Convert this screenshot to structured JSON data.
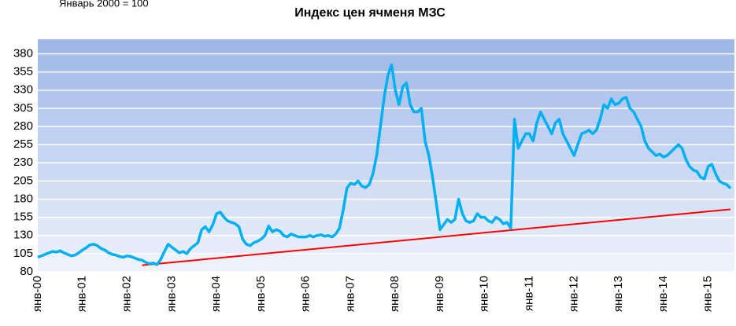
{
  "chart_data": {
    "type": "line",
    "title": "Индекс цен ячменя МЗС",
    "subtitle": "Январь 2000 = 100",
    "categories": [
      "янв-00",
      null,
      null,
      null,
      null,
      null,
      null,
      null,
      null,
      null,
      null,
      null,
      "янв-01",
      null,
      null,
      null,
      null,
      null,
      null,
      null,
      null,
      null,
      null,
      null,
      "янв-02",
      null,
      null,
      null,
      null,
      null,
      null,
      null,
      null,
      null,
      null,
      null,
      "янв-03",
      null,
      null,
      null,
      null,
      null,
      null,
      null,
      null,
      null,
      null,
      null,
      "янв-04",
      null,
      null,
      null,
      null,
      null,
      null,
      null,
      null,
      null,
      null,
      null,
      "янв-05",
      null,
      null,
      null,
      null,
      null,
      null,
      null,
      null,
      null,
      null,
      null,
      "янв-06",
      null,
      null,
      null,
      null,
      null,
      null,
      null,
      null,
      null,
      null,
      null,
      "янв-07",
      null,
      null,
      null,
      null,
      null,
      null,
      null,
      null,
      null,
      null,
      null,
      "янв-08",
      null,
      null,
      null,
      null,
      null,
      null,
      null,
      null,
      null,
      null,
      null,
      "янв-09",
      null,
      null,
      null,
      null,
      null,
      null,
      null,
      null,
      null,
      null,
      null,
      "янв-10",
      null,
      null,
      null,
      null,
      null,
      null,
      null,
      null,
      null,
      null,
      null,
      "янв-11",
      null,
      null,
      null,
      null,
      null,
      null,
      null,
      null,
      null,
      null,
      null,
      "янв-12",
      null,
      null,
      null,
      null,
      null,
      null,
      null,
      null,
      null,
      null,
      null,
      "янв-13",
      null,
      null,
      null,
      null,
      null,
      null,
      null,
      null,
      null,
      null,
      null,
      "янв-14",
      null,
      null,
      null,
      null,
      null,
      null,
      null,
      null,
      null,
      null,
      null,
      "янв-15",
      null,
      null,
      null,
      null,
      null,
      null
    ],
    "series": [
      {
        "color": "#00b0f0",
        "values": [
          100,
          102,
          104,
          106,
          108,
          107,
          109,
          106,
          104,
          102,
          103,
          106,
          110,
          113,
          117,
          118,
          116,
          112,
          110,
          106,
          104,
          103,
          101,
          100,
          102,
          101,
          99,
          97,
          96,
          93,
          91,
          92,
          90,
          97,
          108,
          118,
          114,
          110,
          106,
          108,
          105,
          112,
          116,
          120,
          138,
          142,
          135,
          145,
          160,
          162,
          155,
          150,
          148,
          146,
          142,
          125,
          118,
          116,
          120,
          122,
          125,
          130,
          143,
          135,
          138,
          136,
          130,
          128,
          132,
          130,
          128,
          128,
          128,
          130,
          128,
          130,
          131,
          129,
          130,
          128,
          132,
          140,
          165,
          195,
          202,
          200,
          205,
          198,
          196,
          200,
          215,
          240,
          280,
          320,
          350,
          365,
          330,
          310,
          335,
          340,
          310,
          300,
          300,
          305,
          260,
          240,
          210,
          175,
          138,
          145,
          152,
          148,
          152,
          180,
          160,
          150,
          148,
          150,
          160,
          155,
          155,
          150,
          148,
          155,
          152,
          146,
          148,
          140,
          290,
          250,
          260,
          270,
          270,
          260,
          285,
          300,
          290,
          280,
          270,
          285,
          290,
          270,
          260,
          250,
          240,
          255,
          270,
          272,
          275,
          270,
          275,
          290,
          310,
          305,
          318,
          310,
          312,
          318,
          320,
          305,
          300,
          290,
          280,
          260,
          250,
          245,
          240,
          242,
          238,
          240,
          245,
          250,
          255,
          250,
          235,
          225,
          220,
          218,
          210,
          208,
          225,
          228,
          215,
          205,
          202,
          200,
          195
        ]
      },
      {
        "color": "#ff0000",
        "values": [
          null,
          null,
          null,
          null,
          null,
          null,
          null,
          null,
          null,
          null,
          null,
          null,
          null,
          null,
          null,
          null,
          null,
          null,
          null,
          null,
          null,
          null,
          null,
          null,
          null,
          null,
          null,
          null,
          89,
          null,
          null,
          null,
          null,
          null,
          null,
          null,
          null,
          null,
          null,
          null,
          null,
          null,
          null,
          null,
          null,
          null,
          null,
          null,
          null,
          null,
          null,
          null,
          null,
          null,
          null,
          null,
          null,
          null,
          null,
          null,
          null,
          null,
          null,
          null,
          null,
          null,
          null,
          null,
          null,
          null,
          null,
          null,
          null,
          null,
          null,
          null,
          null,
          null,
          null,
          null,
          null,
          null,
          null,
          null,
          null,
          null,
          null,
          null,
          null,
          null,
          null,
          null,
          null,
          null,
          null,
          null,
          null,
          null,
          null,
          null,
          null,
          null,
          null,
          null,
          null,
          null,
          null,
          null,
          null,
          null,
          null,
          null,
          null,
          null,
          null,
          null,
          null,
          null,
          null,
          null,
          null,
          null,
          null,
          null,
          null,
          null,
          null,
          null,
          null,
          null,
          null,
          null,
          null,
          null,
          null,
          null,
          null,
          null,
          null,
          null,
          null,
          null,
          null,
          null,
          null,
          null,
          null,
          null,
          null,
          null,
          null,
          null,
          null,
          null,
          null,
          null,
          null,
          null,
          null,
          null,
          null,
          null,
          null,
          null,
          null,
          null,
          null,
          null,
          null,
          null,
          null,
          null,
          null,
          null,
          null,
          null,
          null,
          null,
          null,
          null,
          null,
          null,
          null,
          null,
          null,
          null,
          166
        ]
      }
    ],
    "ylim": [
      80,
      400
    ],
    "yticks": [
      80,
      105,
      130,
      155,
      180,
      205,
      230,
      255,
      280,
      305,
      330,
      355,
      380
    ],
    "grid": true
  }
}
